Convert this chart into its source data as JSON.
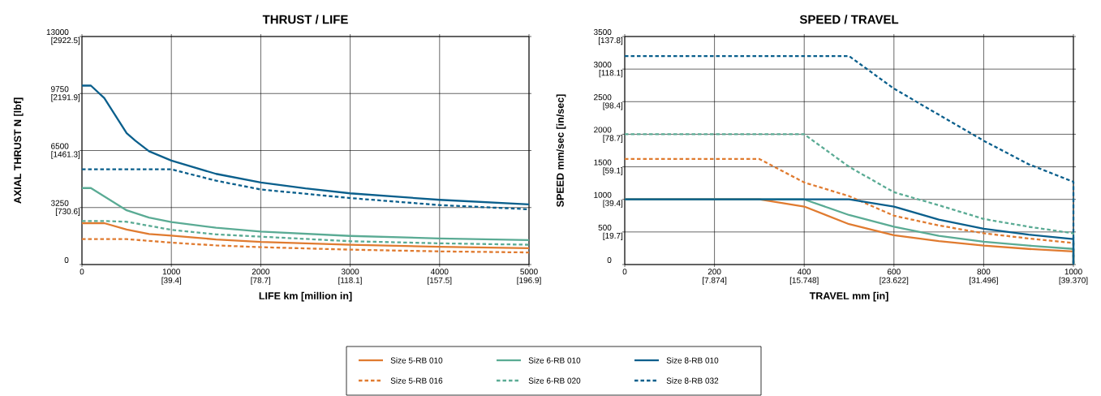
{
  "chart_data": [
    {
      "type": "line",
      "title": "THRUST / LIFE",
      "xlabel": "LIFE  km [million in]",
      "ylabel": "AXIAL THRUST  N [lbf]",
      "xlim": [
        0,
        5000
      ],
      "ylim": [
        0,
        13000
      ],
      "xticks": [
        0,
        1000,
        2000,
        3000,
        4000,
        5000
      ],
      "yticks": [
        0,
        3250,
        6500,
        9750,
        13000
      ],
      "x2lim": [
        0,
        196.9
      ],
      "x2ticks": [
        {
          "value": 39.4,
          "label": "[39.4]"
        },
        {
          "value": 78.7,
          "label": "[78.7]"
        },
        {
          "value": 118.1,
          "label": "[118.1]"
        },
        {
          "value": 157.5,
          "label": "[157.5]"
        },
        {
          "value": 196.9,
          "label": "[196.9]"
        }
      ],
      "y2lim": [
        0,
        2922.5
      ],
      "y2ticks": [
        {
          "value": 730.6,
          "label": "[730.6]"
        },
        {
          "value": 1461.3,
          "label": "[1461.3]"
        },
        {
          "value": 2191.9,
          "label": "[2191.9]"
        },
        {
          "value": 2922.5,
          "label": "[2922.5]"
        }
      ],
      "grid": true,
      "legend": "bottom",
      "series": [
        {
          "name": "Size 5-RB 010",
          "color": "#e07b30",
          "line_style": "solid",
          "x": [
            0,
            250,
            500,
            750,
            1000,
            1500,
            2000,
            3000,
            4000,
            5000
          ],
          "values": [
            2360,
            2360,
            2000,
            1740,
            1650,
            1430,
            1290,
            1130,
            1010,
            930
          ]
        },
        {
          "name": "Size 5-RB 016",
          "color": "#e07b30",
          "line_style": "dashed",
          "x": [
            0,
            500,
            1000,
            1500,
            2000,
            3000,
            4000,
            5000
          ],
          "values": [
            1450,
            1450,
            1250,
            1090,
            990,
            850,
            750,
            690
          ]
        },
        {
          "name": "Size 6-RB 010",
          "color": "#5aab94",
          "line_style": "solid",
          "x": [
            0,
            100,
            500,
            750,
            1000,
            1500,
            2000,
            3000,
            4000,
            5000
          ],
          "values": [
            4360,
            4360,
            3090,
            2680,
            2420,
            2100,
            1880,
            1630,
            1490,
            1390
          ]
        },
        {
          "name": "Size 6-RB 020",
          "color": "#5aab94",
          "line_style": "dashed",
          "x": [
            0,
            250,
            500,
            1000,
            1500,
            2000,
            3000,
            4000,
            5000
          ],
          "values": [
            2480,
            2480,
            2440,
            1980,
            1720,
            1590,
            1330,
            1210,
            1130
          ]
        },
        {
          "name": "Size 8-RB 010",
          "color": "#0a5f8c",
          "line_style": "solid",
          "x": [
            0,
            100,
            250,
            500,
            600,
            750,
            1000,
            1500,
            2000,
            2500,
            3000,
            4000,
            5000
          ],
          "values": [
            10200,
            10200,
            9490,
            7490,
            7050,
            6460,
            5930,
            5170,
            4680,
            4340,
            4060,
            3690,
            3430
          ]
        },
        {
          "name": "Size 8-RB 032",
          "color": "#0a5f8c",
          "line_style": "dashed",
          "x": [
            0,
            1000,
            1500,
            2000,
            3000,
            4000,
            5000
          ],
          "values": [
            5430,
            5430,
            4780,
            4280,
            3790,
            3390,
            3150
          ]
        }
      ]
    },
    {
      "type": "line",
      "title": "SPEED / TRAVEL",
      "xlabel": "TRAVEL  mm [in]",
      "ylabel": "SPEED  mm/sec [in/sec]",
      "xlim": [
        0,
        1000
      ],
      "ylim": [
        0,
        3500
      ],
      "xticks": [
        0,
        200,
        400,
        600,
        800,
        1000
      ],
      "yticks": [
        0,
        500,
        1000,
        1500,
        2000,
        2500,
        3000,
        3500
      ],
      "x2lim": [
        0,
        39.37
      ],
      "x2ticks": [
        {
          "value": 7.874,
          "label": "[7.874]"
        },
        {
          "value": 15.748,
          "label": "[15.748]"
        },
        {
          "value": 23.622,
          "label": "[23.622]"
        },
        {
          "value": 31.496,
          "label": "[31.496]"
        },
        {
          "value": 39.37,
          "label": "[39.370]"
        }
      ],
      "y2lim": [
        0,
        137.8
      ],
      "y2ticks": [
        {
          "value": 19.7,
          "label": "[19.7]"
        },
        {
          "value": 39.4,
          "label": "[39.4]"
        },
        {
          "value": 59.1,
          "label": "[59.1]"
        },
        {
          "value": 78.7,
          "label": "[78.7]"
        },
        {
          "value": 98.4,
          "label": "[98.4]"
        },
        {
          "value": 118.1,
          "label": "[118.1]"
        },
        {
          "value": 137.8,
          "label": "[137.8]"
        }
      ],
      "grid": true,
      "series": [
        {
          "color": "#e07b30",
          "line_style": "solid",
          "x": [
            0,
            300,
            400,
            500,
            600,
            700,
            800,
            900,
            1000,
            1000
          ],
          "values": [
            1000,
            1000,
            890,
            620,
            450,
            360,
            290,
            240,
            200,
            0
          ]
        },
        {
          "color": "#e07b30",
          "line_style": "dashed",
          "x": [
            0,
            300,
            400,
            500,
            600,
            700,
            800,
            900,
            1000,
            1000
          ],
          "values": [
            1620,
            1620,
            1260,
            1050,
            750,
            600,
            480,
            400,
            330,
            0
          ]
        },
        {
          "color": "#5aab94",
          "line_style": "solid",
          "x": [
            0,
            400,
            500,
            600,
            700,
            800,
            900,
            1000,
            1000
          ],
          "values": [
            1000,
            1000,
            760,
            580,
            440,
            350,
            290,
            240,
            0
          ]
        },
        {
          "color": "#5aab94",
          "line_style": "dashed",
          "x": [
            0,
            400,
            500,
            600,
            700,
            800,
            900,
            1000,
            1000
          ],
          "values": [
            2000,
            2000,
            1500,
            1110,
            910,
            700,
            580,
            480,
            0
          ]
        },
        {
          "color": "#0a5f8c",
          "line_style": "solid",
          "x": [
            0,
            500,
            600,
            700,
            800,
            900,
            1000,
            1000
          ],
          "values": [
            1000,
            1000,
            890,
            690,
            550,
            460,
            390,
            0
          ]
        },
        {
          "color": "#0a5f8c",
          "line_style": "dashed",
          "x": [
            0,
            500,
            600,
            700,
            800,
            900,
            1000,
            1000
          ],
          "values": [
            3200,
            3200,
            2700,
            2300,
            1900,
            1540,
            1270,
            0
          ]
        }
      ]
    }
  ]
}
